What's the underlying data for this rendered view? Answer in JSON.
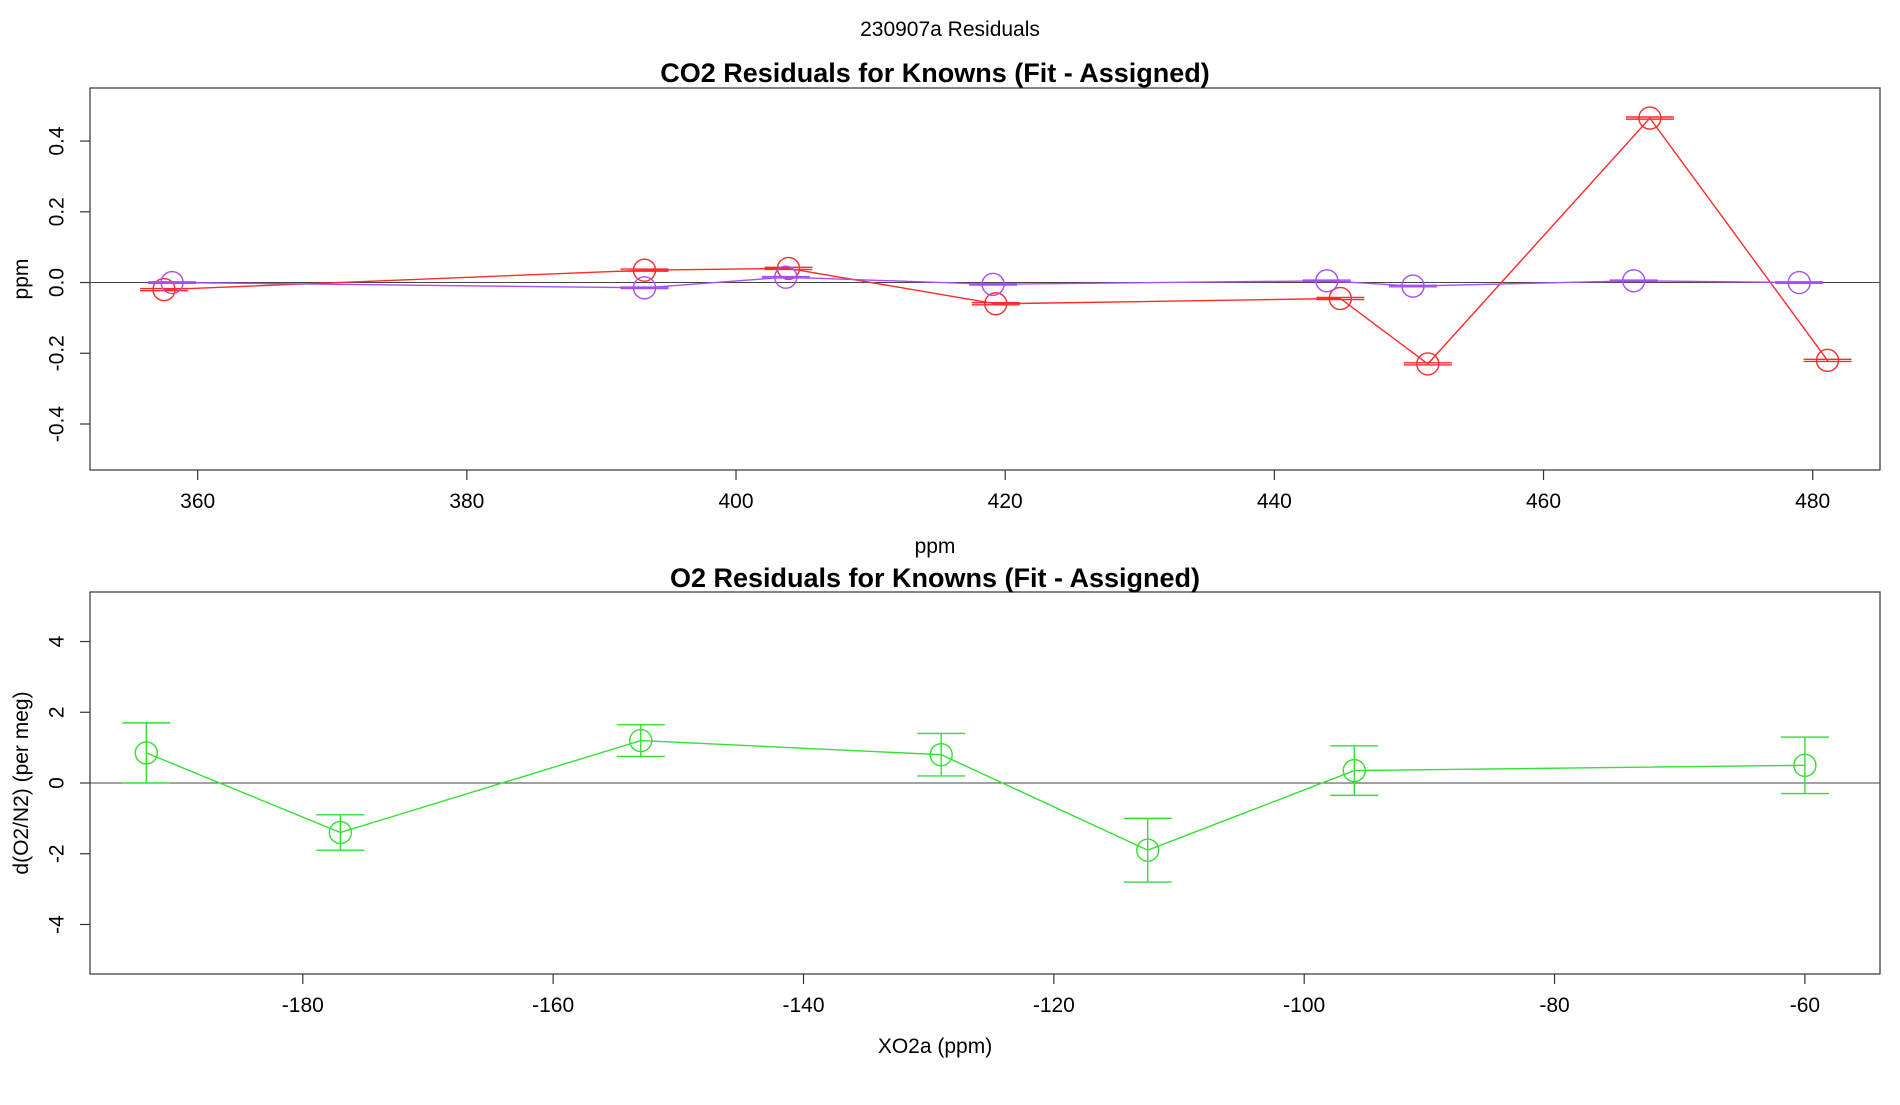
{
  "page_title": "230907a  Residuals",
  "chart_data": [
    {
      "type": "line",
      "title": "CO2 Residuals for Knowns (Fit - Assigned)",
      "xlabel": "ppm",
      "ylabel": "ppm",
      "xlim": [
        352,
        485
      ],
      "ylim": [
        -0.53,
        0.55
      ],
      "xticks": [
        360,
        380,
        400,
        420,
        440,
        460,
        480
      ],
      "yticks": [
        -0.4,
        -0.2,
        0.0,
        0.2,
        0.4
      ],
      "xtick_labels": [
        "360",
        "380",
        "400",
        "420",
        "440",
        "460",
        "480"
      ],
      "ytick_labels": [
        "-0.4",
        "-0.2",
        "0.0",
        "0.2",
        "0.4"
      ],
      "reference_line": 0,
      "series": [
        {
          "color": "#ff2a2a",
          "x": [
            357.5,
            393.2,
            403.9,
            419.3,
            444.9,
            451.4,
            467.9,
            481.1
          ],
          "y": [
            -0.02,
            0.035,
            0.04,
            -0.06,
            -0.045,
            -0.23,
            0.465,
            -0.22
          ],
          "err": [
            0.003,
            0.003,
            0.003,
            0.003,
            0.003,
            0.003,
            0.003,
            0.003
          ]
        },
        {
          "color": "#a64dff",
          "x": [
            358.1,
            393.2,
            403.7,
            419.1,
            443.9,
            450.3,
            466.7,
            479.0
          ],
          "y": [
            0.0,
            -0.015,
            0.015,
            -0.005,
            0.005,
            -0.01,
            0.005,
            0.0
          ],
          "err": [
            0.002,
            0.002,
            0.002,
            0.002,
            0.002,
            0.002,
            0.002,
            0.002
          ]
        }
      ]
    },
    {
      "type": "line",
      "title": "O2 Residuals for Knowns (Fit - Assigned)",
      "xlabel": "XO2a (ppm)",
      "ylabel": "d(O2/N2) (per meg)",
      "xlim": [
        -197,
        -54
      ],
      "ylim": [
        -5.4,
        5.4
      ],
      "xticks": [
        -180,
        -160,
        -140,
        -120,
        -100,
        -80,
        -60
      ],
      "yticks": [
        -4,
        -2,
        0,
        2,
        4
      ],
      "xtick_labels": [
        "-180",
        "-160",
        "-140",
        "-120",
        "-100",
        "-80",
        "-60"
      ],
      "ytick_labels": [
        "-4",
        "-2",
        "0",
        "2",
        "4"
      ],
      "reference_line": 0,
      "series": [
        {
          "color": "#33e033",
          "x": [
            -192.5,
            -177.0,
            -153.0,
            -129.0,
            -112.5,
            -96.0,
            -60.0
          ],
          "y": [
            0.85,
            -1.4,
            1.2,
            0.8,
            -1.9,
            0.35,
            0.5
          ],
          "err": [
            0.85,
            0.5,
            0.45,
            0.6,
            0.9,
            0.7,
            0.8
          ]
        }
      ]
    }
  ]
}
